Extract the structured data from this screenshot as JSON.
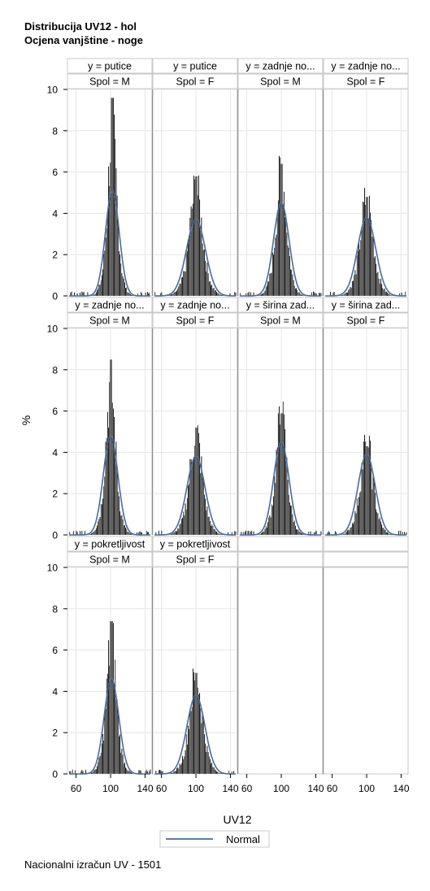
{
  "title_line1": "Distribucija UV12 - hol",
  "title_line2": "Ocjena vanjštine - noge",
  "footnote": "Nacionalni izračun UV - 1501",
  "chart_data": {
    "type": "histogram-panel",
    "xlabel": "UV12",
    "ylabel": "%",
    "xlim": [
      50,
      148
    ],
    "ylim": [
      0,
      10
    ],
    "xticks": [
      60,
      100,
      140
    ],
    "yticks": [
      0,
      2,
      4,
      6,
      8,
      10
    ],
    "grid": true,
    "legend": {
      "position": "bottom-center",
      "entries": [
        {
          "label": "Normal",
          "color": "#4a6b9a"
        }
      ]
    },
    "overlay": "normal-density",
    "panels": [
      {
        "row": 0,
        "col": 0,
        "y_label": "y = putice",
        "spol_label": "Spol = M",
        "peak_bar": 9.6,
        "normal_peak": 5.1,
        "mean": 102,
        "sd": 8
      },
      {
        "row": 0,
        "col": 1,
        "y_label": "y = putice",
        "spol_label": "Spol = F",
        "peak_bar": 5.8,
        "normal_peak": 3.7,
        "mean": 100,
        "sd": 11
      },
      {
        "row": 0,
        "col": 2,
        "y_label": "y = zadnje no...",
        "spol_label": "Spol = M",
        "peak_bar": 6.4,
        "normal_peak": 4.5,
        "mean": 100,
        "sd": 9
      },
      {
        "row": 0,
        "col": 3,
        "y_label": "y = zadnje no...",
        "spol_label": "Spol = F",
        "peak_bar": 4.8,
        "normal_peak": 3.8,
        "mean": 100,
        "sd": 10.5
      },
      {
        "row": 1,
        "col": 0,
        "y_label": "y = zadnje no...",
        "spol_label": "Spol = M",
        "peak_bar": 8.5,
        "normal_peak": 4.8,
        "mean": 100,
        "sd": 8.5
      },
      {
        "row": 1,
        "col": 1,
        "y_label": "y = zadnje no...",
        "spol_label": "Spol = F",
        "peak_bar": 5.2,
        "normal_peak": 3.8,
        "mean": 100,
        "sd": 10.5
      },
      {
        "row": 1,
        "col": 2,
        "y_label": "y = širina zad...",
        "spol_label": "Spol = M",
        "peak_bar": 5.9,
        "normal_peak": 4.5,
        "mean": 100,
        "sd": 9
      },
      {
        "row": 1,
        "col": 3,
        "y_label": "y = širina zad...",
        "spol_label": "Spol = F",
        "peak_bar": 4.3,
        "normal_peak": 3.9,
        "mean": 100,
        "sd": 10
      },
      {
        "row": 2,
        "col": 0,
        "y_label": "y = pokretljivost",
        "spol_label": "Spol = M",
        "peak_bar": 7.4,
        "normal_peak": 4.6,
        "mean": 101,
        "sd": 8.5
      },
      {
        "row": 2,
        "col": 1,
        "y_label": "y = pokretljivost",
        "spol_label": "Spol = F",
        "peak_bar": 4.9,
        "normal_peak": 3.8,
        "mean": 100,
        "sd": 10.5
      }
    ]
  }
}
